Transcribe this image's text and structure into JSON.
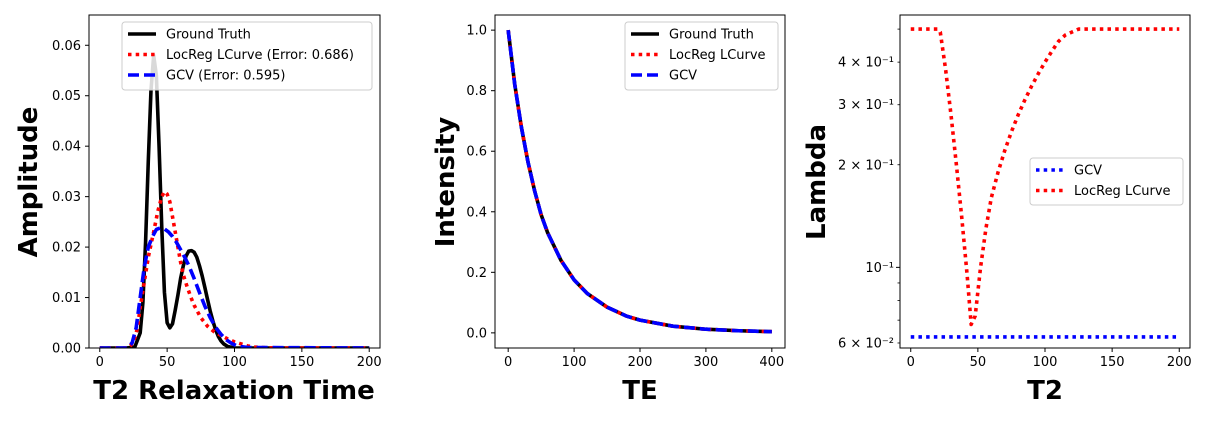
{
  "chart_data": [
    {
      "type": "line",
      "xlabel": "T2 Relaxation Time",
      "ylabel": "Amplitude",
      "xlim": [
        -8,
        208
      ],
      "ylim": [
        0,
        0.066
      ],
      "xticks": [
        0,
        50,
        100,
        150,
        200
      ],
      "yticks": [
        0,
        0.01,
        0.02,
        0.03,
        0.04,
        0.05,
        0.06
      ],
      "ytick_labels": [
        "0.00",
        "0.01",
        "0.02",
        "0.03",
        "0.04",
        "0.05",
        "0.06"
      ],
      "legend_position": "top-right",
      "series": [
        {
          "name": "Ground Truth",
          "color": "#000000",
          "style": "solid",
          "x": [
            0,
            20,
            26,
            30,
            32,
            34,
            36,
            38,
            40,
            42,
            44,
            46,
            48,
            50,
            52,
            54,
            56,
            58,
            60,
            62,
            64,
            66,
            68,
            70,
            72,
            74,
            76,
            78,
            80,
            82,
            84,
            86,
            88,
            90,
            92,
            95,
            100,
            110,
            120,
            200
          ],
          "y": [
            0,
            0,
            0.0002,
            0.003,
            0.009,
            0.021,
            0.037,
            0.051,
            0.058,
            0.054,
            0.04,
            0.024,
            0.011,
            0.005,
            0.004,
            0.0048,
            0.0075,
            0.0105,
            0.0138,
            0.0163,
            0.0182,
            0.0192,
            0.0193,
            0.019,
            0.018,
            0.0163,
            0.0143,
            0.012,
            0.0096,
            0.0073,
            0.0053,
            0.0036,
            0.0023,
            0.0014,
            0.0008,
            0.0003,
            0,
            0,
            0,
            0
          ]
        },
        {
          "name": "LocReg LCurve (Error: 0.686)",
          "color": "#ff0000",
          "style": "dotted",
          "x": [
            0,
            20,
            23,
            26,
            28,
            30,
            33,
            36,
            40,
            43,
            46,
            48,
            50,
            52,
            54,
            56,
            58,
            60,
            62,
            65,
            68,
            70,
            75,
            80,
            85,
            90,
            95,
            100,
            105,
            110,
            115,
            120,
            130,
            200
          ],
          "y": [
            0,
            0,
            0.0005,
            0.002,
            0.004,
            0.008,
            0.013,
            0.018,
            0.023,
            0.027,
            0.03,
            0.031,
            0.0305,
            0.029,
            0.026,
            0.023,
            0.02,
            0.017,
            0.0145,
            0.012,
            0.0098,
            0.0085,
            0.006,
            0.0043,
            0.0032,
            0.0025,
            0.0018,
            0.0012,
            0.0008,
            0.0004,
            0.0002,
            0.0001,
            0,
            0
          ]
        },
        {
          "name": "GCV (Error: 0.595)",
          "color": "#0000ff",
          "style": "dashed",
          "x": [
            0,
            20,
            24,
            27,
            30,
            33,
            36,
            39,
            42,
            45,
            48,
            51,
            54,
            57,
            60,
            63,
            66,
            70,
            74,
            78,
            82,
            86,
            90,
            94,
            98,
            102,
            110,
            200
          ],
          "y": [
            0,
            0,
            0.001,
            0.004,
            0.01,
            0.016,
            0.02,
            0.022,
            0.0235,
            0.0238,
            0.0236,
            0.023,
            0.0221,
            0.0209,
            0.0195,
            0.018,
            0.0164,
            0.0138,
            0.011,
            0.0083,
            0.006,
            0.0041,
            0.0027,
            0.0016,
            0.0009,
            0.0004,
            0.0001,
            0
          ]
        }
      ]
    },
    {
      "type": "line",
      "xlabel": "TE",
      "ylabel": "Intensity",
      "xlim": [
        -20,
        420
      ],
      "ylim": [
        -0.05,
        1.05
      ],
      "xticks": [
        0,
        100,
        200,
        300,
        400
      ],
      "yticks": [
        0,
        0.2,
        0.4,
        0.6,
        0.8,
        1.0
      ],
      "ytick_labels": [
        "0.0",
        "0.2",
        "0.4",
        "0.6",
        "0.8",
        "1.0"
      ],
      "legend_position": "top-right",
      "series": [
        {
          "name": "Ground Truth",
          "color": "#000000",
          "style": "solid",
          "x": [
            0,
            10,
            20,
            30,
            40,
            50,
            60,
            80,
            100,
            120,
            150,
            180,
            200,
            250,
            300,
            350,
            400
          ],
          "y": [
            1.0,
            0.82,
            0.68,
            0.565,
            0.47,
            0.39,
            0.33,
            0.24,
            0.175,
            0.13,
            0.085,
            0.055,
            0.042,
            0.022,
            0.012,
            0.007,
            0.004
          ]
        },
        {
          "name": "LocReg LCurve",
          "color": "#ff0000",
          "style": "dotted",
          "x": [
            0,
            10,
            20,
            30,
            40,
            50,
            60,
            80,
            100,
            120,
            150,
            180,
            200,
            250,
            300,
            350,
            400
          ],
          "y": [
            1.0,
            0.82,
            0.68,
            0.565,
            0.47,
            0.39,
            0.33,
            0.24,
            0.175,
            0.13,
            0.085,
            0.055,
            0.042,
            0.022,
            0.012,
            0.007,
            0.004
          ]
        },
        {
          "name": "GCV",
          "color": "#0000ff",
          "style": "dashed",
          "x": [
            0,
            10,
            20,
            30,
            40,
            50,
            60,
            80,
            100,
            120,
            150,
            180,
            200,
            250,
            300,
            350,
            400
          ],
          "y": [
            1.0,
            0.82,
            0.68,
            0.565,
            0.47,
            0.39,
            0.33,
            0.24,
            0.175,
            0.13,
            0.085,
            0.055,
            0.042,
            0.022,
            0.012,
            0.007,
            0.004
          ]
        }
      ]
    },
    {
      "type": "line",
      "xlabel": "T2",
      "ylabel": "Lambda",
      "yscale": "log",
      "xlim": [
        -8,
        208
      ],
      "ylim": [
        0.058,
        0.55
      ],
      "xticks": [
        0,
        50,
        100,
        150,
        200
      ],
      "yticks_major": [
        0.1
      ],
      "ytick_major_labels": [
        "10⁻¹"
      ],
      "yticks_minor": [
        0.06,
        0.2,
        0.3,
        0.4
      ],
      "ytick_minor_labels": [
        "6 × 10⁻²",
        "2 × 10⁻¹",
        "3 × 10⁻¹",
        "4 × 10⁻¹"
      ],
      "legend_position": "center-right",
      "series": [
        {
          "name": "GCV",
          "color": "#0000ff",
          "style": "dotted",
          "x": [
            0,
            200
          ],
          "y": [
            0.0625,
            0.0625
          ]
        },
        {
          "name": "LocReg LCurve",
          "color": "#ff0000",
          "style": "dotted",
          "x": [
            0,
            5,
            10,
            15,
            20,
            22,
            26,
            30,
            34,
            38,
            42,
            45,
            48,
            52,
            56,
            60,
            65,
            70,
            75,
            80,
            85,
            90,
            95,
            100,
            105,
            110,
            115,
            120,
            125,
            130,
            150,
            180,
            200
          ],
          "y": [
            0.5,
            0.5,
            0.5,
            0.5,
            0.5,
            0.49,
            0.38,
            0.28,
            0.2,
            0.14,
            0.095,
            0.068,
            0.072,
            0.1,
            0.13,
            0.16,
            0.19,
            0.22,
            0.25,
            0.28,
            0.31,
            0.34,
            0.37,
            0.4,
            0.43,
            0.46,
            0.48,
            0.49,
            0.5,
            0.5,
            0.5,
            0.5,
            0.5
          ]
        }
      ]
    }
  ]
}
